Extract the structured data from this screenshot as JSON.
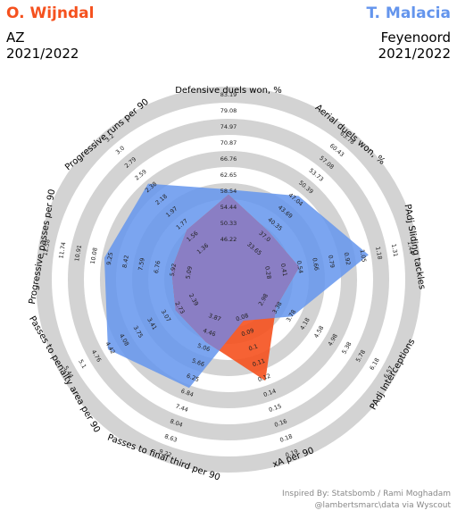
{
  "header": {
    "player1": {
      "name": "O. Wijndal",
      "team": "AZ",
      "season": "2021/2022",
      "color": "#f5511e"
    },
    "player2": {
      "name": "T. Malacia",
      "team": "Feyenoord",
      "season": "2021/2022",
      "color": "#6495ed"
    }
  },
  "credits": {
    "line1": "Inspired By: Statsbomb / Rami Moghadam",
    "line2": "@lambertsmarc\\data via Wyscout"
  },
  "chart_data": {
    "type": "radar",
    "params": [
      "Defensive duels won, %",
      "Aerial duels won, %",
      "PAdj Sliding tackles",
      "PAdj Interceptions",
      "xA per 90",
      "Passes to final third per 90",
      "Passes to penalty area per 90",
      "Progressive passes per 90",
      "Progressive runs per 90"
    ],
    "ranges": [
      [
        "46.22",
        "50.33",
        "54.44",
        "58.54",
        "62.65",
        "66.76",
        "70.87",
        "74.97",
        "79.08",
        "83.19"
      ],
      [
        "33.65",
        "37.0",
        "40.35",
        "43.69",
        "47.04",
        "50.39",
        "53.73",
        "57.08",
        "60.43",
        "63.78"
      ],
      [
        "0.28",
        "0.41",
        "0.54",
        "0.66",
        "0.79",
        "0.92",
        "1.05",
        "1.18",
        "1.31",
        "1.44"
      ],
      [
        "2.98",
        "3.38",
        "3.78",
        "4.18",
        "4.58",
        "4.98",
        "5.38",
        "5.78",
        "6.18",
        "6.57"
      ],
      [
        "0.08",
        "0.09",
        "0.1",
        "0.11",
        "0.12",
        "0.14",
        "0.15",
        "0.16",
        "0.18",
        "0.19"
      ],
      [
        "3.87",
        "4.46",
        "5.06",
        "5.66",
        "6.25",
        "6.84",
        "7.44",
        "8.04",
        "8.63",
        "9.22"
      ],
      [
        "2.39",
        "2.73",
        "3.07",
        "3.41",
        "3.75",
        "4.08",
        "4.42",
        "4.76",
        "5.1",
        "5.44"
      ],
      [
        "5.09",
        "5.92",
        "6.76",
        "7.59",
        "8.42",
        "9.25",
        "10.08",
        "10.91",
        "11.74",
        "12.58"
      ],
      [
        "1.36",
        "1.56",
        "1.77",
        "1.97",
        "2.18",
        "2.38",
        "2.59",
        "2.79",
        "3.0",
        "3.2"
      ]
    ],
    "series": [
      {
        "name": "O. Wijndal",
        "values": [
          61.5,
          40.8,
          0.64,
          3.62,
          0.145,
          5.3,
          3.08,
          6.6,
          1.83
        ]
      },
      {
        "name": "T. Malacia",
        "values": [
          63.0,
          51.8,
          1.28,
          4.15,
          0.09,
          7.35,
          4.95,
          10.6,
          2.7
        ]
      }
    ],
    "overlap_color": "#8a7ec4",
    "ring_color": "#d3d3d3"
  }
}
